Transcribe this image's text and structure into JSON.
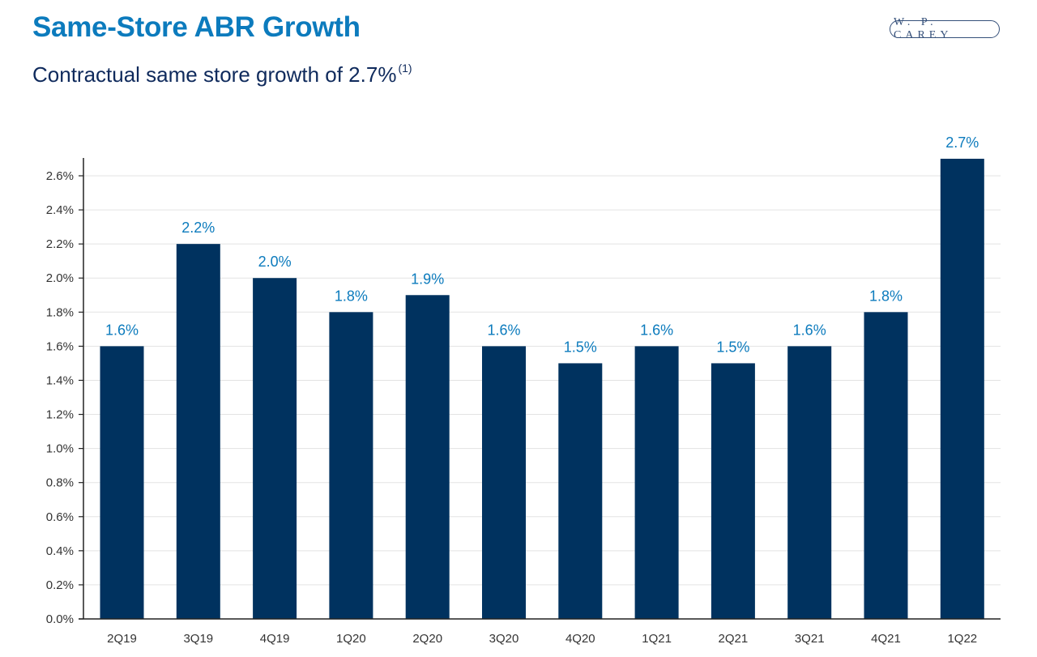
{
  "header": {
    "title": "Same-Store ABR Growth",
    "subtitle": "Contractual same store growth of 2.7%",
    "subtitle_footnote": "(1)",
    "logo_text": "W. P. CAREY"
  },
  "colors": {
    "title": "#0c7bbd",
    "subtitle": "#0f2a5c",
    "bar": "#00325f",
    "data_label": "#0c7bbd",
    "gridline": "#e3e3e3",
    "axis": "#222222"
  },
  "chart_data": {
    "type": "bar",
    "title": "Same-Store ABR Growth",
    "subtitle": "Contractual same store growth of 2.7% (1)",
    "xlabel": "",
    "ylabel": "",
    "categories": [
      "2Q19",
      "3Q19",
      "4Q19",
      "1Q20",
      "2Q20",
      "3Q20",
      "4Q20",
      "1Q21",
      "2Q21",
      "3Q21",
      "4Q21",
      "1Q22"
    ],
    "values": [
      1.6,
      2.2,
      2.0,
      1.8,
      1.9,
      1.6,
      1.5,
      1.6,
      1.5,
      1.6,
      1.8,
      2.7
    ],
    "data_labels": [
      "1.6%",
      "2.2%",
      "2.0%",
      "1.8%",
      "1.9%",
      "1.6%",
      "1.5%",
      "1.6%",
      "1.5%",
      "1.6%",
      "1.8%",
      "2.7%"
    ],
    "ylim": [
      0,
      2.6
    ],
    "yticks": [
      0.0,
      0.2,
      0.4,
      0.6,
      0.8,
      1.0,
      1.2,
      1.4,
      1.6,
      1.8,
      2.0,
      2.2,
      2.4,
      2.6
    ],
    "ytick_labels": [
      "0.0%",
      "0.2%",
      "0.4%",
      "0.6%",
      "0.8%",
      "1.0%",
      "1.2%",
      "1.4%",
      "1.6%",
      "1.8%",
      "2.0%",
      "2.2%",
      "2.4%",
      "2.6%"
    ],
    "grid": true,
    "legend": "none",
    "unit": "%"
  }
}
